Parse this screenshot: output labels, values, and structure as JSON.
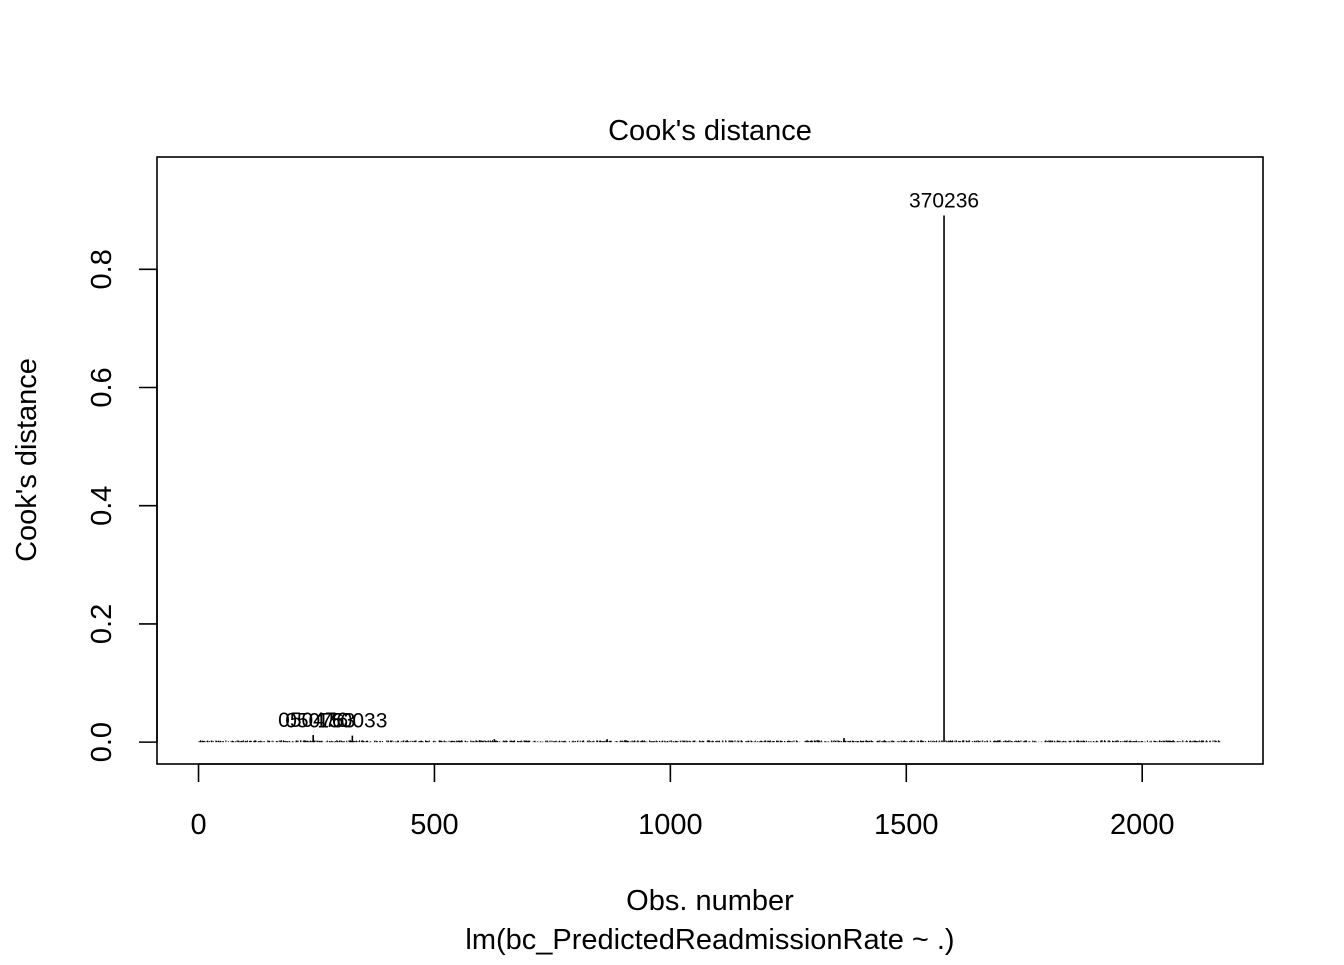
{
  "chart_data": {
    "type": "bar",
    "title": "Cook's distance",
    "xlabel": "Obs. number",
    "subtitle": "lm(bc_PredictedReadmissionRate ~ .)",
    "ylabel": "Cook's distance",
    "xlim": [
      -88,
      2256
    ],
    "ylim": [
      -0.037,
      0.99
    ],
    "xticks": [
      0,
      500,
      1000,
      1500,
      2000
    ],
    "xtick_labels": [
      "0",
      "500",
      "1000",
      "1500",
      "2000"
    ],
    "yticks": [
      0.0,
      0.2,
      0.4,
      0.6,
      0.8
    ],
    "ytick_labels": [
      "0.0",
      "0.2",
      "0.4",
      "0.6",
      "0.8"
    ],
    "n_obs": 2165,
    "baseline_max": 0.006,
    "spikes": [
      {
        "x": 1580,
        "y": 0.891
      },
      {
        "x": 243,
        "y": 0.012
      },
      {
        "x": 326,
        "y": 0.011
      },
      {
        "x": 1368,
        "y": 0.007
      },
      {
        "x": 866,
        "y": 0.005
      },
      {
        "x": 627,
        "y": 0.005
      }
    ],
    "point_labels": [
      {
        "x": 1580,
        "y": 0.891,
        "text": "370236"
      },
      {
        "x": 243,
        "y": 0.012,
        "text": "050476"
      },
      {
        "x": 326,
        "y": 0.011,
        "text": "150033"
      },
      {
        "x": 258,
        "y": 0.011,
        "text": "050763"
      }
    ],
    "grid": false,
    "legend": "none"
  }
}
